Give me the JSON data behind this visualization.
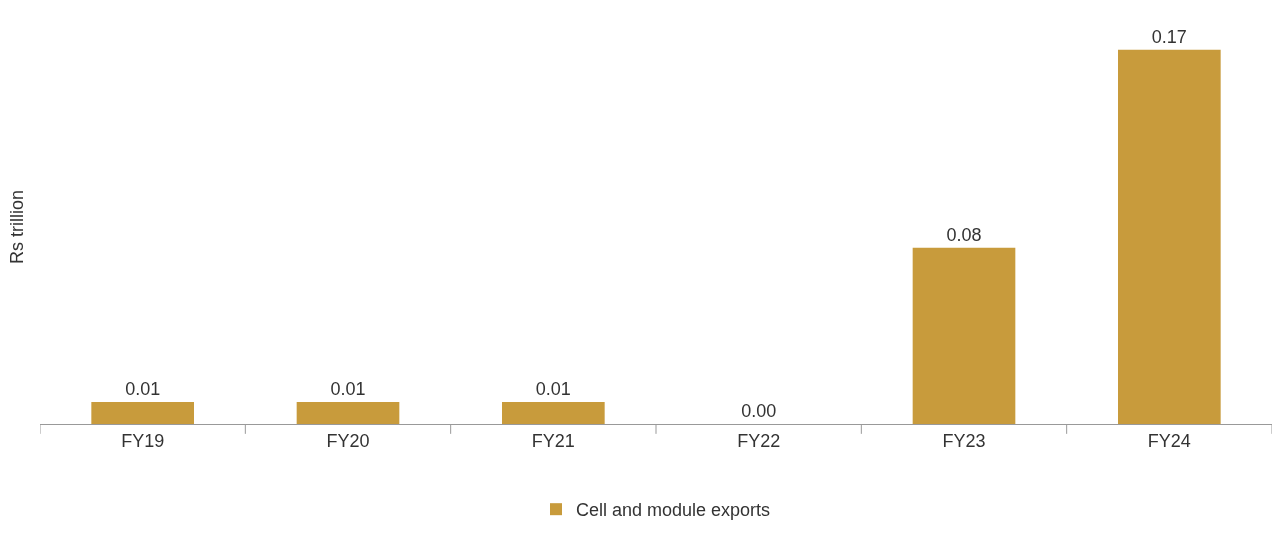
{
  "chart_data": {
    "type": "bar",
    "ylabel": "Rs trillion",
    "categories": [
      "FY19",
      "FY20",
      "FY21",
      "FY22",
      "FY23",
      "FY24"
    ],
    "series": [
      {
        "name": "Cell and module exports",
        "color": "#c89b3c",
        "values": [
          0.01,
          0.01,
          0.01,
          0.0,
          0.08,
          0.17
        ],
        "value_labels": [
          "0.01",
          "0.01",
          "0.01",
          "0.00",
          "0.08",
          "0.17"
        ]
      }
    ],
    "legend": "bottom",
    "grid": false,
    "tick_labels": "x"
  }
}
